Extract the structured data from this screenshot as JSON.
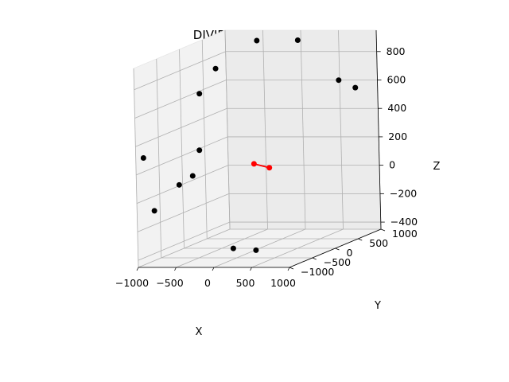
{
  "chart_data": {
    "type": "scatter3d",
    "title": "DIVIDE AND CONQUER",
    "xlabel": "X",
    "ylabel": "Y",
    "zlabel": "Z",
    "xlim": [
      -1000,
      1000
    ],
    "ylim": [
      -1000,
      1000
    ],
    "zlim": [
      -450,
      950
    ],
    "x_ticks": [
      -1000,
      -500,
      0,
      500,
      1000
    ],
    "y_ticks": [
      -1000,
      -500,
      0,
      500,
      1000
    ],
    "z_ticks": [
      -400,
      -200,
      0,
      200,
      400,
      600,
      800
    ],
    "grid": true,
    "points_color": "#000000",
    "closest_pair_color": "#ff0000",
    "points": [
      {
        "x": -920,
        "y": 280,
        "z": 600
      },
      {
        "x": -480,
        "y": 830,
        "z": 900
      },
      {
        "x": -820,
        "y": 480,
        "z": 750
      },
      {
        "x": 50,
        "y": 850,
        "z": 900
      },
      {
        "x": 720,
        "y": 620,
        "z": 650
      },
      {
        "x": 950,
        "y": 600,
        "z": 600
      },
      {
        "x": -950,
        "y": 300,
        "z": 200
      },
      {
        "x": -990,
        "y": -850,
        "z": 300
      },
      {
        "x": -800,
        "y": -400,
        "z": 50
      },
      {
        "x": -680,
        "y": -300,
        "z": 100
      },
      {
        "x": -990,
        "y": -640,
        "z": -100
      },
      {
        "x": 110,
        "y": -750,
        "z": -350
      },
      {
        "x": 330,
        "y": -620,
        "z": -380
      }
    ],
    "closest_pair": [
      {
        "x": -250,
        "y": 330,
        "z": 100
      },
      {
        "x": -60,
        "y": 350,
        "z": 70
      }
    ]
  }
}
